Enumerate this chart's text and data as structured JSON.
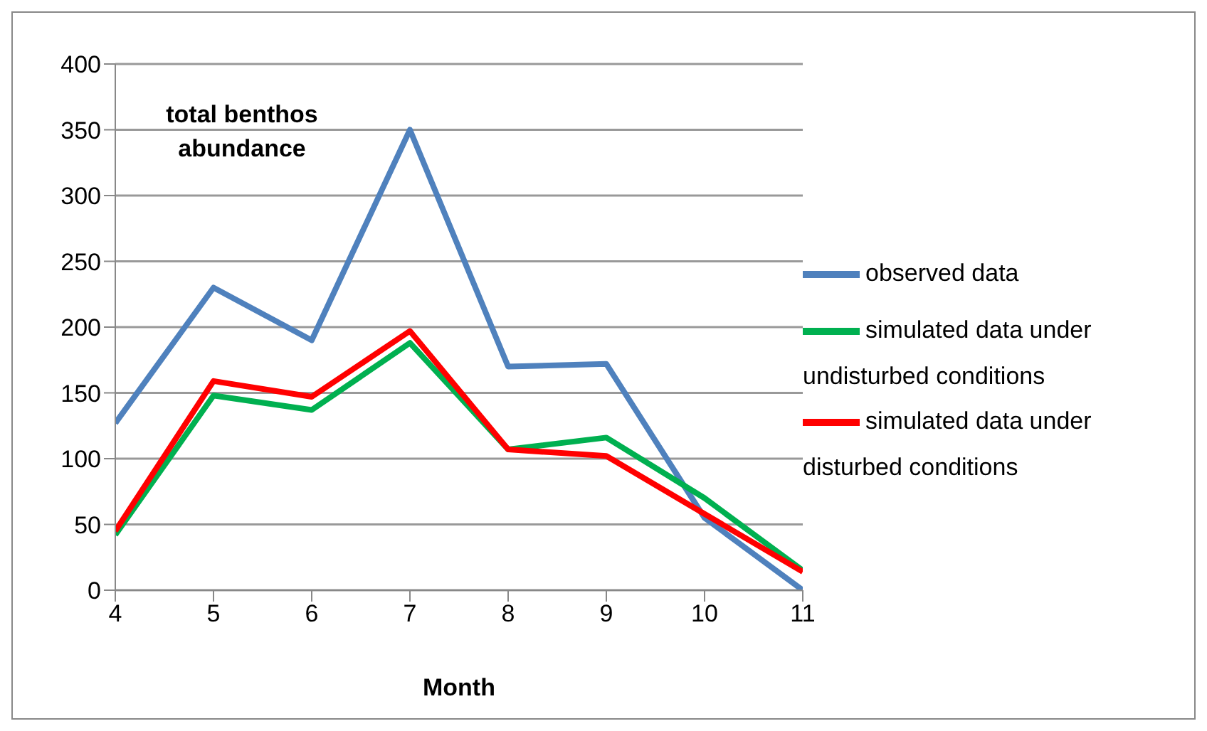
{
  "chart_data": {
    "type": "line",
    "xlabel": "Month",
    "annotations": [
      "total benthos abundance"
    ],
    "x": [
      4,
      5,
      6,
      7,
      8,
      9,
      10,
      11
    ],
    "series": [
      {
        "name": "observed data",
        "color": "#4f81bd",
        "values": [
          127,
          230,
          190,
          350,
          170,
          172,
          55,
          0
        ]
      },
      {
        "name": "simulated data  under undisturbed conditions",
        "color": "#00b050",
        "values": [
          42,
          148,
          137,
          188,
          107,
          116,
          70,
          15
        ]
      },
      {
        "name": "simulated data  under disturbed conditions",
        "color": "#ff0000",
        "values": [
          45,
          159,
          147,
          197,
          107,
          102,
          58,
          14
        ]
      }
    ],
    "xlim": [
      4,
      11
    ],
    "xticks": [
      4,
      5,
      6,
      7,
      8,
      9,
      10,
      11
    ],
    "ylim": [
      0,
      400
    ],
    "yticks": [
      0,
      50,
      100,
      150,
      200,
      250,
      300,
      350,
      400
    ],
    "grid": "y",
    "legend": "right",
    "marker": "none",
    "line_style": "solid"
  }
}
